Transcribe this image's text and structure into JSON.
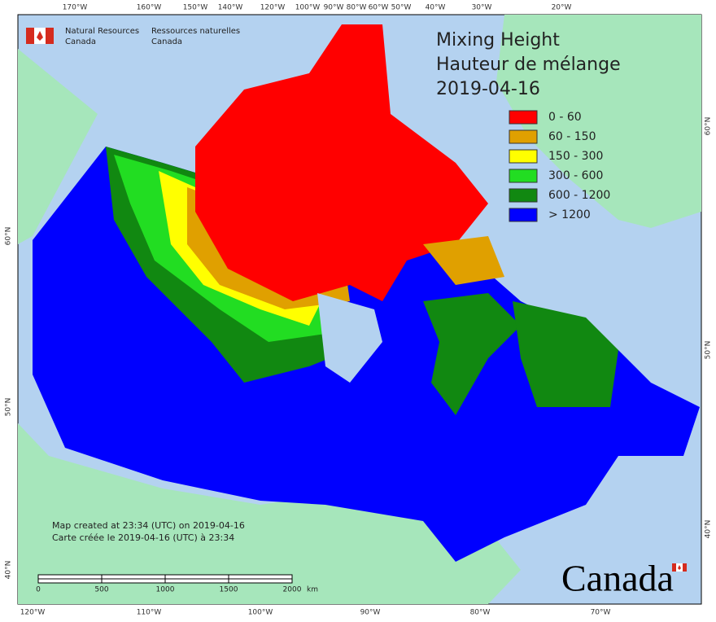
{
  "header": {
    "agency_en": "Natural Resources",
    "agency_en_2": "Canada",
    "agency_fr": "Ressources naturelles",
    "agency_fr_2": "Canada"
  },
  "title": [
    "Mixing Height",
    "Hauteur de mélange",
    "2019-04-16"
  ],
  "legend": [
    {
      "label": "0 - 60",
      "color": "#ff0000"
    },
    {
      "label": "60 - 150",
      "color": "#e0a000"
    },
    {
      "label": "150 - 300",
      "color": "#ffff00"
    },
    {
      "label": "300 - 600",
      "color": "#22dd22"
    },
    {
      "label": "600 - 1200",
      "color": "#118811"
    },
    {
      "label": "> 1200",
      "color": "#0000ff"
    }
  ],
  "top_labels": [
    "170°W",
    "160°W",
    "150°W",
    "140°W",
    "120°W",
    "100°W",
    "90°W",
    "80°W",
    "60°W",
    "50°W",
    "40°W",
    "30°W",
    "20°W"
  ],
  "bottom_labels": [
    "120°W",
    "110°W",
    "100°W",
    "90°W",
    "80°W",
    "70°W"
  ],
  "left_labels": [
    "60°N",
    "50°N",
    "40°N"
  ],
  "right_labels": [
    "60°N",
    "50°N",
    "40°N"
  ],
  "footer": {
    "created_en": "Map created at 23:34 (UTC) on 2019-04-16",
    "created_fr": "Carte créée le 2019-04-16 (UTC) à 23:34"
  },
  "scale_bar": {
    "labels": [
      "0",
      "500",
      "1000",
      "1500",
      "2000"
    ],
    "unit": "km"
  },
  "wordmark": "Canada"
}
